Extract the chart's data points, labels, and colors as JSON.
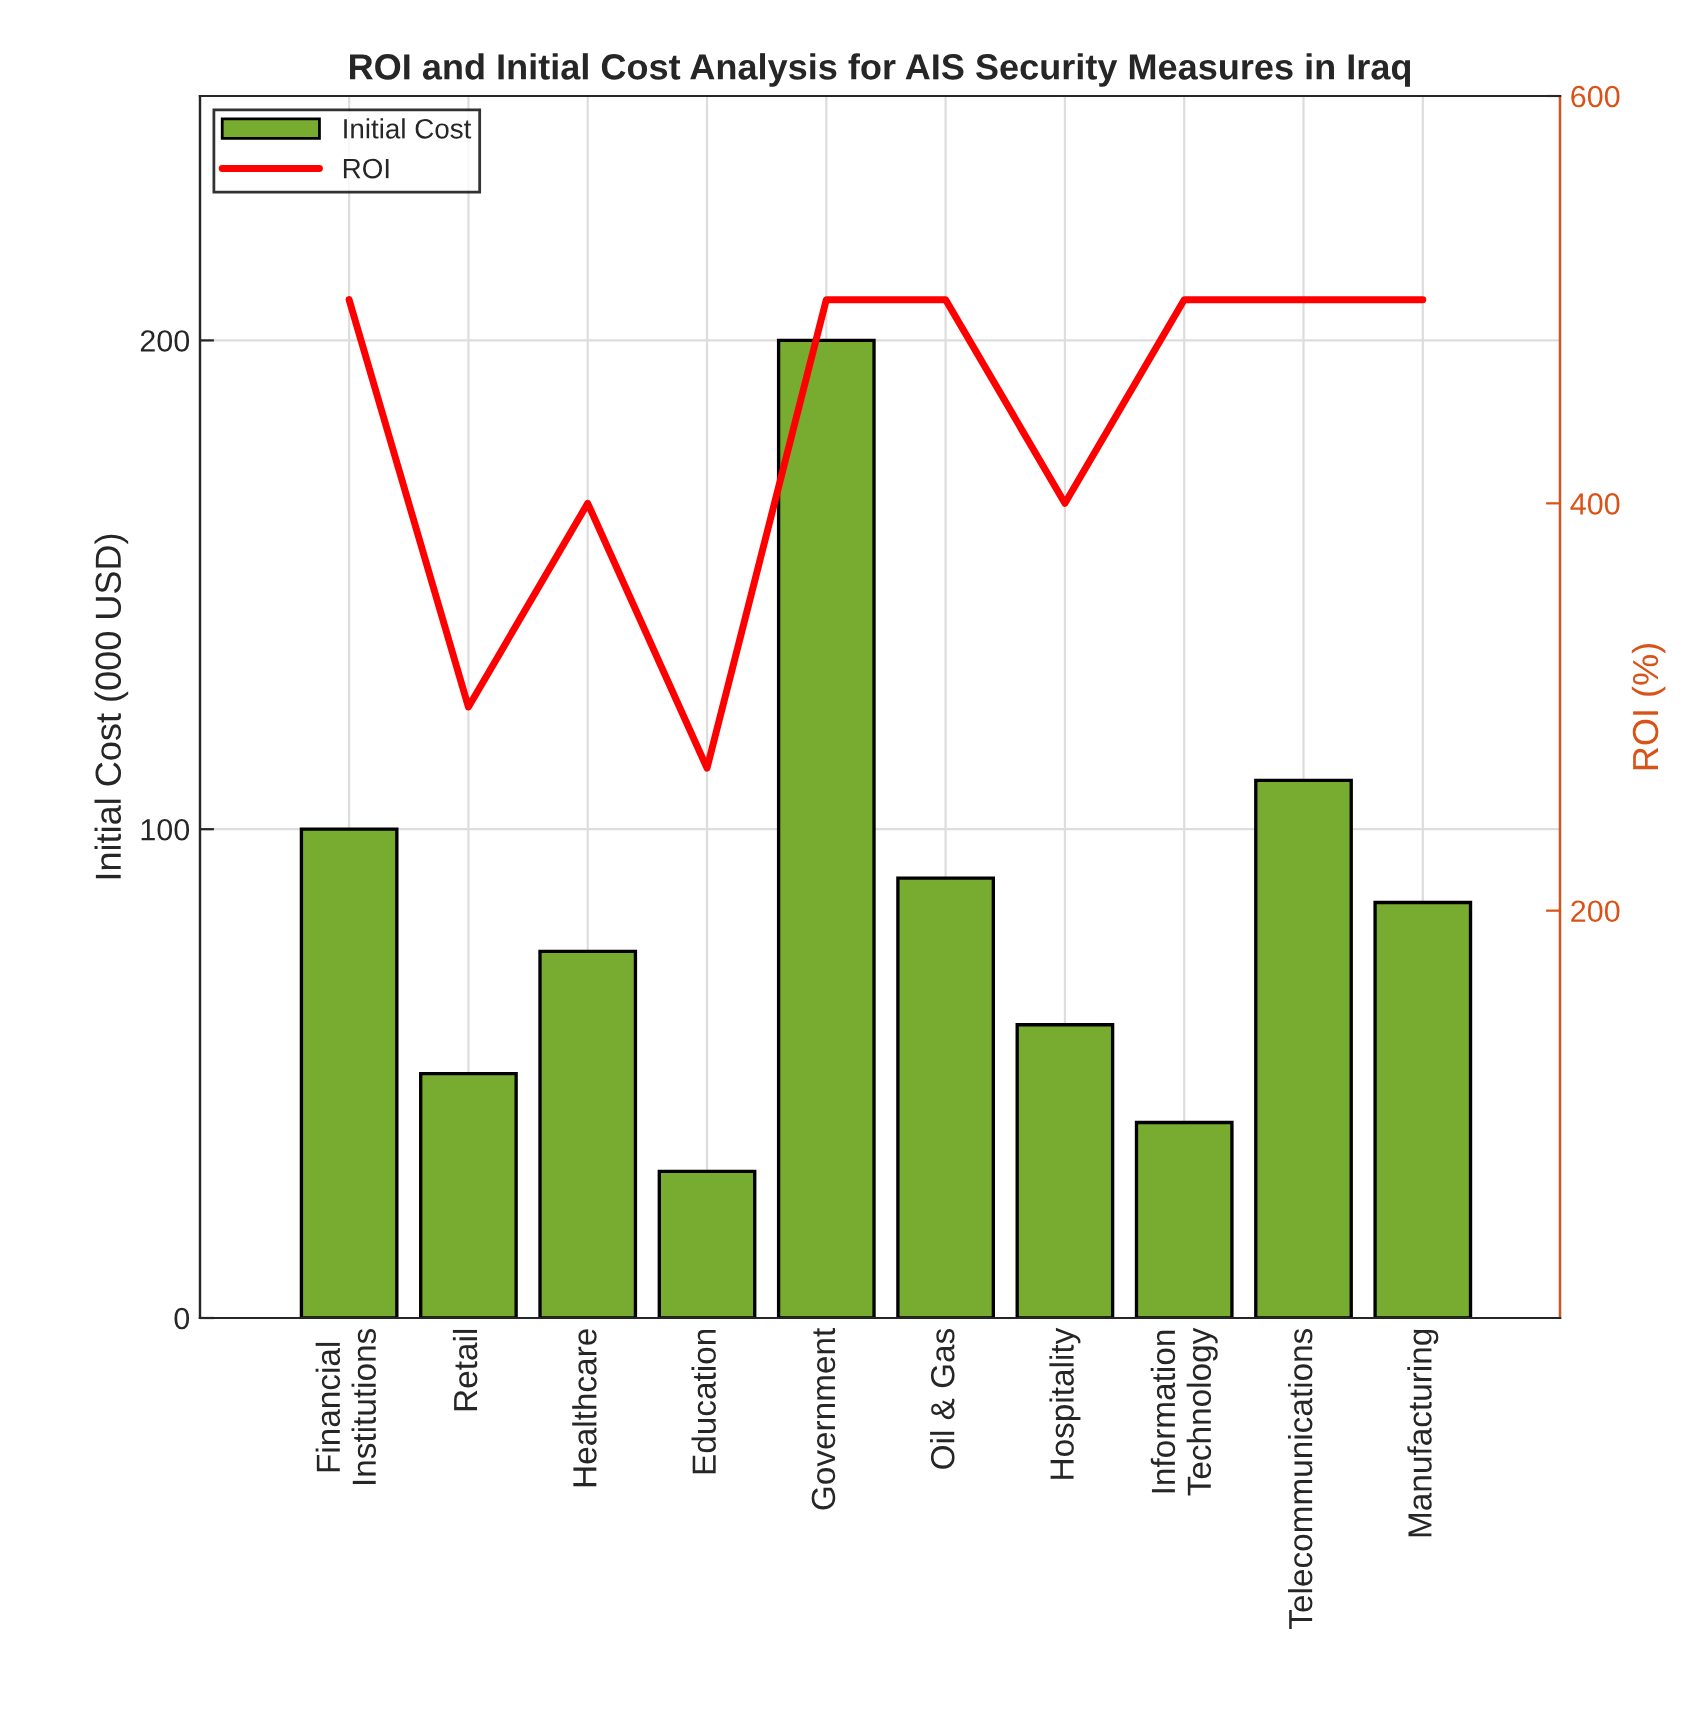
{
  "chart_data": {
    "type": "bar",
    "title": "ROI and Initial Cost Analysis for AIS Security Measures in Iraq",
    "categories": [
      "Financial\nInstitutions",
      "Retail",
      "Healthcare",
      "Education",
      "Government",
      "Oil & Gas",
      "Hospitality",
      "Information\nTechnology",
      "Telecommunications",
      "Manufacturing"
    ],
    "series": [
      {
        "name": "Initial Cost",
        "color": "#77ac30",
        "values": [
          100,
          50,
          75,
          30,
          200,
          90,
          60,
          40,
          110,
          85
        ]
      },
      {
        "name": "ROI",
        "type": "line",
        "axis": "y2",
        "color": "#ff0000",
        "values": [
          500,
          300,
          400,
          270,
          500,
          500,
          400,
          500,
          500,
          500
        ]
      }
    ],
    "ylabel": "Initial Cost (000 USD)",
    "y2label": "ROI (%)",
    "ylim": [
      0,
      250
    ],
    "yticks": [
      0,
      100,
      200
    ],
    "y2lim": [
      0,
      600
    ],
    "y2ticks": [
      200,
      400,
      600
    ],
    "grid": true,
    "legend": "top left"
  }
}
